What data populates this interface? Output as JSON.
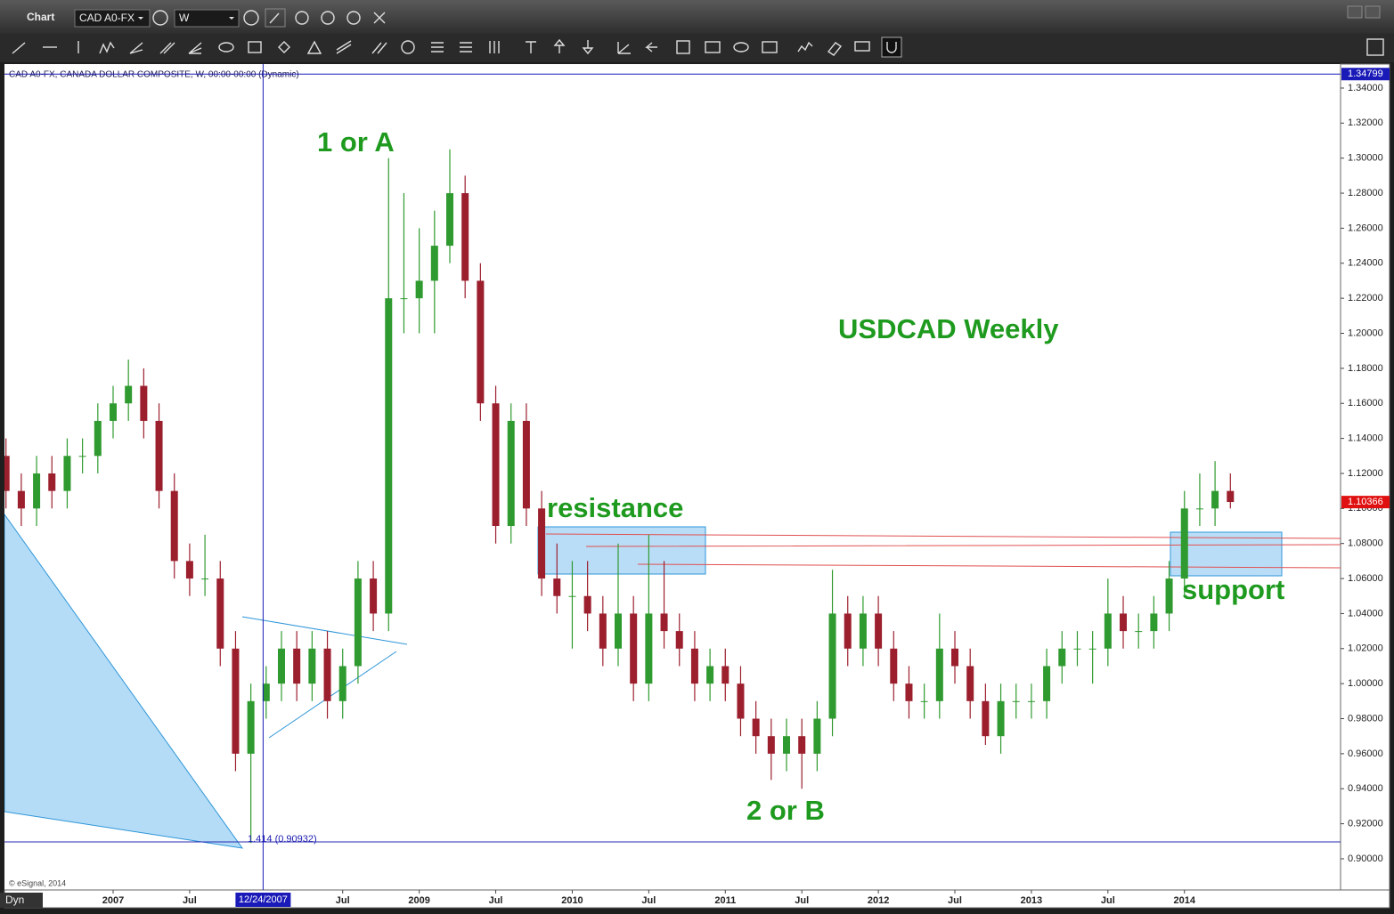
{
  "window": {
    "title": "Chart",
    "symbol": "CAD A0-FX",
    "interval": "W"
  },
  "chart_data": {
    "type": "candlestick",
    "title": "CAD A0-FX, CANADA DOLLAR COMPOSITE, W, 00:00-00:00 (Dynamic)",
    "x": [
      2006.3,
      2006.4,
      2006.5,
      2006.6,
      2006.7,
      2006.8,
      2006.9,
      2007.0,
      2007.1,
      2007.2,
      2007.3,
      2007.4,
      2007.5,
      2007.6,
      2007.7,
      2007.8,
      2007.9,
      2008.0,
      2008.1,
      2008.2,
      2008.3,
      2008.4,
      2008.5,
      2008.6,
      2008.7,
      2008.8,
      2008.9,
      2009.0,
      2009.1,
      2009.2,
      2009.3,
      2009.4,
      2009.5,
      2009.6,
      2009.7,
      2009.8,
      2009.9,
      2010.0,
      2010.1,
      2010.2,
      2010.3,
      2010.4,
      2010.5,
      2010.6,
      2010.7,
      2010.8,
      2010.9,
      2011.0,
      2011.1,
      2011.2,
      2011.3,
      2011.4,
      2011.5,
      2011.6,
      2011.7,
      2011.8,
      2011.9,
      2012.0,
      2012.1,
      2012.2,
      2012.3,
      2012.4,
      2012.5,
      2012.6,
      2012.7,
      2012.8,
      2012.9,
      2013.0,
      2013.1,
      2013.2,
      2013.3,
      2013.4,
      2013.5,
      2013.6,
      2013.7,
      2013.8,
      2013.9,
      2014.0,
      2014.1,
      2014.2,
      2014.3
    ],
    "open": [
      1.13,
      1.11,
      1.1,
      1.12,
      1.11,
      1.13,
      1.13,
      1.15,
      1.16,
      1.17,
      1.15,
      1.11,
      1.07,
      1.06,
      1.06,
      1.02,
      0.96,
      0.99,
      1.0,
      1.02,
      1.0,
      1.02,
      0.99,
      1.01,
      1.06,
      1.04,
      1.22,
      1.22,
      1.23,
      1.25,
      1.28,
      1.23,
      1.16,
      1.09,
      1.15,
      1.1,
      1.06,
      1.05,
      1.05,
      1.04,
      1.02,
      1.04,
      1.0,
      1.04,
      1.03,
      1.02,
      1.0,
      1.01,
      1.0,
      0.98,
      0.97,
      0.96,
      0.97,
      0.96,
      0.98,
      1.04,
      1.02,
      1.04,
      1.02,
      1.0,
      0.99,
      0.99,
      1.02,
      1.01,
      0.99,
      0.97,
      0.99,
      0.99,
      0.99,
      1.01,
      1.02,
      1.02,
      1.02,
      1.04,
      1.03,
      1.03,
      1.04,
      1.06,
      1.1,
      1.1,
      1.11
    ],
    "high": [
      1.14,
      1.12,
      1.13,
      1.13,
      1.14,
      1.14,
      1.16,
      1.17,
      1.185,
      1.18,
      1.16,
      1.12,
      1.08,
      1.085,
      1.07,
      1.03,
      1.0,
      1.01,
      1.03,
      1.03,
      1.03,
      1.03,
      1.02,
      1.07,
      1.07,
      1.3,
      1.28,
      1.26,
      1.27,
      1.305,
      1.29,
      1.24,
      1.17,
      1.16,
      1.16,
      1.11,
      1.08,
      1.07,
      1.07,
      1.05,
      1.08,
      1.05,
      1.085,
      1.07,
      1.04,
      1.03,
      1.02,
      1.02,
      1.01,
      0.99,
      0.98,
      0.98,
      0.98,
      0.99,
      1.065,
      1.05,
      1.05,
      1.05,
      1.03,
      1.01,
      1.0,
      1.04,
      1.03,
      1.02,
      1.0,
      1.0,
      1.0,
      1.0,
      1.02,
      1.03,
      1.03,
      1.03,
      1.06,
      1.05,
      1.04,
      1.05,
      1.07,
      1.11,
      1.12,
      1.127,
      1.12
    ],
    "low": [
      1.1,
      1.09,
      1.09,
      1.1,
      1.1,
      1.12,
      1.12,
      1.14,
      1.15,
      1.14,
      1.1,
      1.06,
      1.05,
      1.05,
      1.01,
      0.95,
      0.909,
      0.98,
      0.99,
      0.99,
      0.99,
      0.98,
      0.98,
      1.0,
      1.03,
      1.03,
      1.2,
      1.2,
      1.2,
      1.24,
      1.22,
      1.15,
      1.08,
      1.08,
      1.09,
      1.05,
      1.04,
      1.02,
      1.03,
      1.01,
      1.01,
      0.99,
      0.99,
      1.02,
      1.01,
      0.99,
      0.99,
      0.99,
      0.97,
      0.96,
      0.945,
      0.95,
      0.94,
      0.95,
      0.97,
      1.01,
      1.01,
      1.01,
      0.99,
      0.98,
      0.98,
      0.98,
      1.0,
      0.98,
      0.965,
      0.96,
      0.98,
      0.98,
      0.98,
      1.0,
      1.01,
      1.0,
      1.01,
      1.02,
      1.02,
      1.02,
      1.03,
      1.05,
      1.09,
      1.09,
      1.1
    ],
    "close": [
      1.11,
      1.1,
      1.12,
      1.11,
      1.13,
      1.13,
      1.15,
      1.16,
      1.17,
      1.15,
      1.11,
      1.07,
      1.06,
      1.06,
      1.02,
      0.96,
      0.99,
      1.0,
      1.02,
      1.0,
      1.02,
      0.99,
      1.01,
      1.06,
      1.04,
      1.22,
      1.22,
      1.23,
      1.25,
      1.28,
      1.23,
      1.16,
      1.09,
      1.15,
      1.1,
      1.06,
      1.05,
      1.05,
      1.04,
      1.02,
      1.04,
      1.0,
      1.04,
      1.03,
      1.02,
      1.0,
      1.01,
      1.0,
      0.98,
      0.97,
      0.96,
      0.97,
      0.96,
      0.98,
      1.04,
      1.02,
      1.04,
      1.02,
      1.0,
      0.99,
      0.99,
      1.02,
      1.01,
      0.99,
      0.97,
      0.99,
      0.99,
      0.99,
      1.01,
      1.02,
      1.02,
      1.02,
      1.04,
      1.03,
      1.03,
      1.04,
      1.06,
      1.1,
      1.1,
      1.11,
      1.1037
    ],
    "up_color": "#2f9a2f",
    "down_color": "#9c1f2e",
    "xlim": [
      2006.29,
      2015.02
    ],
    "xticks": [
      2007,
      {
        "value": 2007.5,
        "label": "Jul"
      },
      {
        "value": 2008.5,
        "label": "Jul"
      },
      2009,
      {
        "value": 2009.5,
        "label": "Jul"
      },
      2010,
      {
        "value": 2010.5,
        "label": "Jul"
      },
      2011,
      {
        "value": 2011.5,
        "label": "Jul"
      },
      2012,
      {
        "value": 2012.5,
        "label": "Jul"
      },
      2013,
      {
        "value": 2013.5,
        "label": "Jul"
      },
      2014
    ],
    "ylim": [
      0.8822,
      1.3537
    ],
    "yticks": [
      {
        "value": 0.9,
        "label": "0.90000"
      },
      {
        "value": 0.92,
        "label": "0.92000"
      },
      {
        "value": 0.94,
        "label": "0.94000"
      },
      {
        "value": 0.96,
        "label": "0.96000"
      },
      {
        "value": 0.98,
        "label": "0.98000"
      },
      {
        "value": 1.0,
        "label": "1.00000"
      },
      {
        "value": 1.02,
        "label": "1.02000"
      },
      {
        "value": 1.04,
        "label": "1.04000"
      },
      {
        "value": 1.06,
        "label": "1.06000"
      },
      {
        "value": 1.08,
        "label": "1.08000"
      },
      {
        "value": 1.1,
        "label": "1.10000"
      },
      {
        "value": 1.12,
        "label": "1.12000"
      },
      {
        "value": 1.14,
        "label": "1.14000"
      },
      {
        "value": 1.16,
        "label": "1.16000"
      },
      {
        "value": 1.18,
        "label": "1.18000"
      },
      {
        "value": 1.2,
        "label": "1.20000"
      },
      {
        "value": 1.22,
        "label": "1.22000"
      },
      {
        "value": 1.24,
        "label": "1.24000"
      },
      {
        "value": 1.26,
        "label": "1.26000"
      },
      {
        "value": 1.28,
        "label": "1.28000"
      },
      {
        "value": 1.3,
        "label": "1.30000"
      },
      {
        "value": 1.32,
        "label": "1.32000"
      },
      {
        "value": 1.34,
        "label": "1.34000"
      }
    ],
    "annotations": [
      "1 or A",
      "USDCAD Weekly",
      "resistance",
      "support",
      "2 or B",
      "1.414 (0.90932)"
    ],
    "last_price": 1.10366,
    "crosshair": {
      "x": {
        "value": 2007.98,
        "label": "12/24/2007"
      },
      "y": 1.34799
    }
  },
  "footer": {
    "copyright": "© eSignal, 2014",
    "mode": "Dyn"
  }
}
